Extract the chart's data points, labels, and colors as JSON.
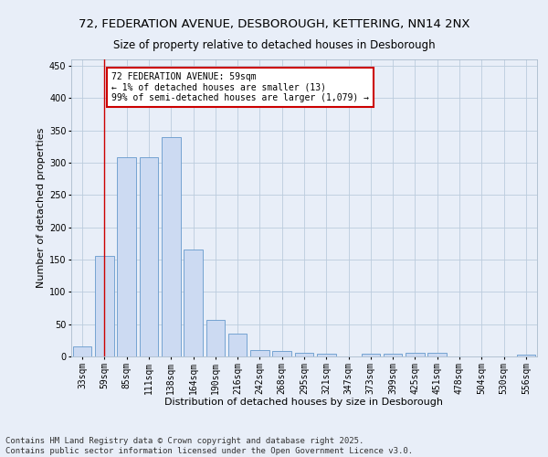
{
  "title_line1": "72, FEDERATION AVENUE, DESBOROUGH, KETTERING, NN14 2NX",
  "title_line2": "Size of property relative to detached houses in Desborough",
  "xlabel": "Distribution of detached houses by size in Desborough",
  "ylabel": "Number of detached properties",
  "bar_color": "#ccdaf2",
  "bar_edge_color": "#6699cc",
  "annotation_box_text": "72 FEDERATION AVENUE: 59sqm\n← 1% of detached houses are smaller (13)\n99% of semi-detached houses are larger (1,079) →",
  "annotation_box_color": "#ffffff",
  "annotation_box_edge_color": "#cc0000",
  "redline_x": 1,
  "background_color": "#e8eef8",
  "footer_line1": "Contains HM Land Registry data © Crown copyright and database right 2025.",
  "footer_line2": "Contains public sector information licensed under the Open Government Licence v3.0.",
  "categories": [
    "33sqm",
    "59sqm",
    "85sqm",
    "111sqm",
    "138sqm",
    "164sqm",
    "190sqm",
    "216sqm",
    "242sqm",
    "268sqm",
    "295sqm",
    "321sqm",
    "347sqm",
    "373sqm",
    "399sqm",
    "425sqm",
    "451sqm",
    "478sqm",
    "504sqm",
    "530sqm",
    "556sqm"
  ],
  "values": [
    15,
    155,
    308,
    308,
    340,
    165,
    57,
    35,
    10,
    8,
    6,
    4,
    0,
    4,
    4,
    5,
    5,
    0,
    0,
    0,
    3
  ],
  "ylim": [
    0,
    460
  ],
  "yticks": [
    0,
    50,
    100,
    150,
    200,
    250,
    300,
    350,
    400,
    450
  ],
  "grid_color": "#bbccdd",
  "title_fontsize": 9.5,
  "subtitle_fontsize": 8.5,
  "axis_label_fontsize": 8,
  "tick_fontsize": 7,
  "footer_fontsize": 6.5,
  "ann_fontsize": 7
}
